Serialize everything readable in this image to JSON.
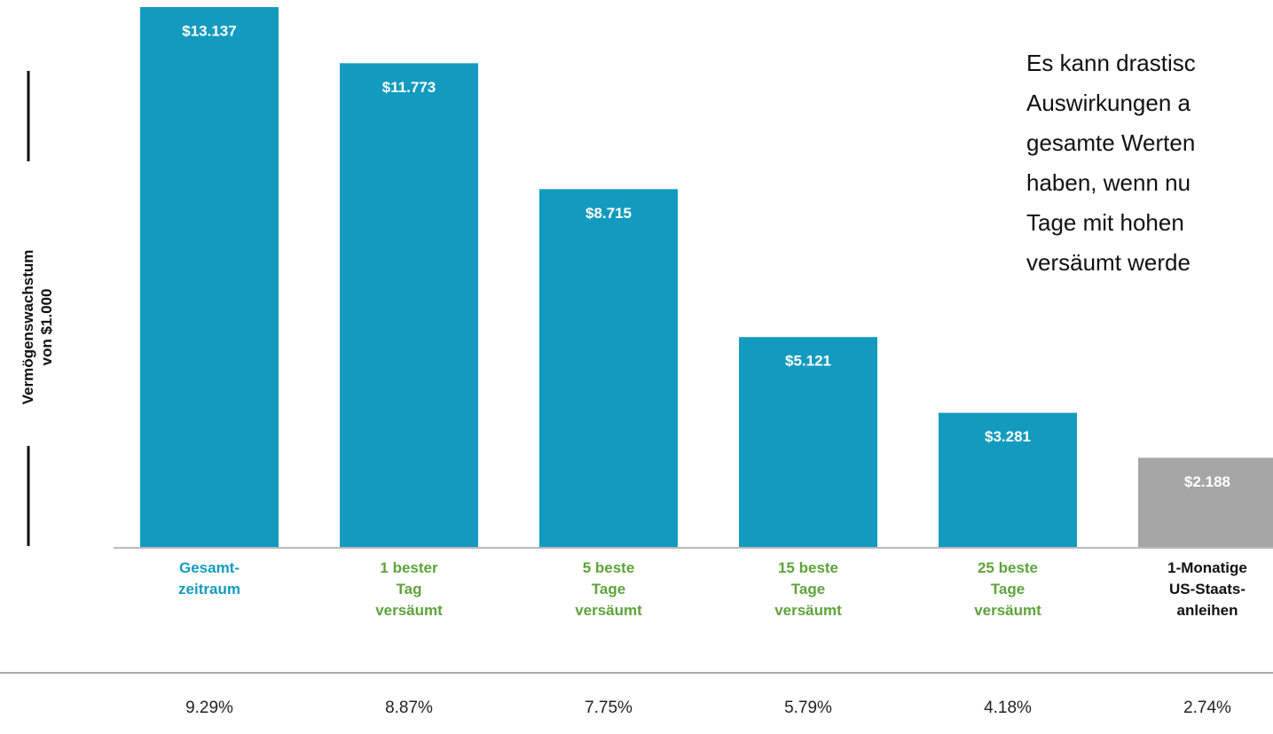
{
  "chart_data": {
    "type": "bar",
    "y_label": "Vermögenswachstum\nvon $1.000",
    "categories": [
      "Gesamt-\nzeitraum",
      "1 bester\nTag\nversäumt",
      "5 beste\nTage\nversäumt",
      "15 beste\nTage\nversäumt",
      "25 beste\nTage\nversäumt",
      "1-Monatige\nUS-Staats-\nanleihen"
    ],
    "values": [
      13137,
      11773,
      8715,
      5121,
      3281,
      2188
    ],
    "value_labels": [
      "$13.137",
      "$11.773",
      "$8.715",
      "$5.121",
      "$3.281",
      "$2.188"
    ],
    "colors": [
      "#139bbf",
      "#139bbf",
      "#139bbf",
      "#139bbf",
      "#139bbf",
      "#a6a6a6"
    ],
    "category_colors": [
      "#139bbf",
      "#5ea33b",
      "#5ea33b",
      "#5ea33b",
      "#5ea33b",
      "#111111"
    ],
    "return_labels": [
      "9.29%",
      "8.87%",
      "7.75%",
      "5.79%",
      "4.18%",
      "2.74%"
    ],
    "annotation": [
      "Es kann drastisc",
      "Auswirkungen a",
      "gesamte Werten",
      "haben, wenn nu",
      "Tage mit hohen",
      "versäumt werde"
    ]
  }
}
